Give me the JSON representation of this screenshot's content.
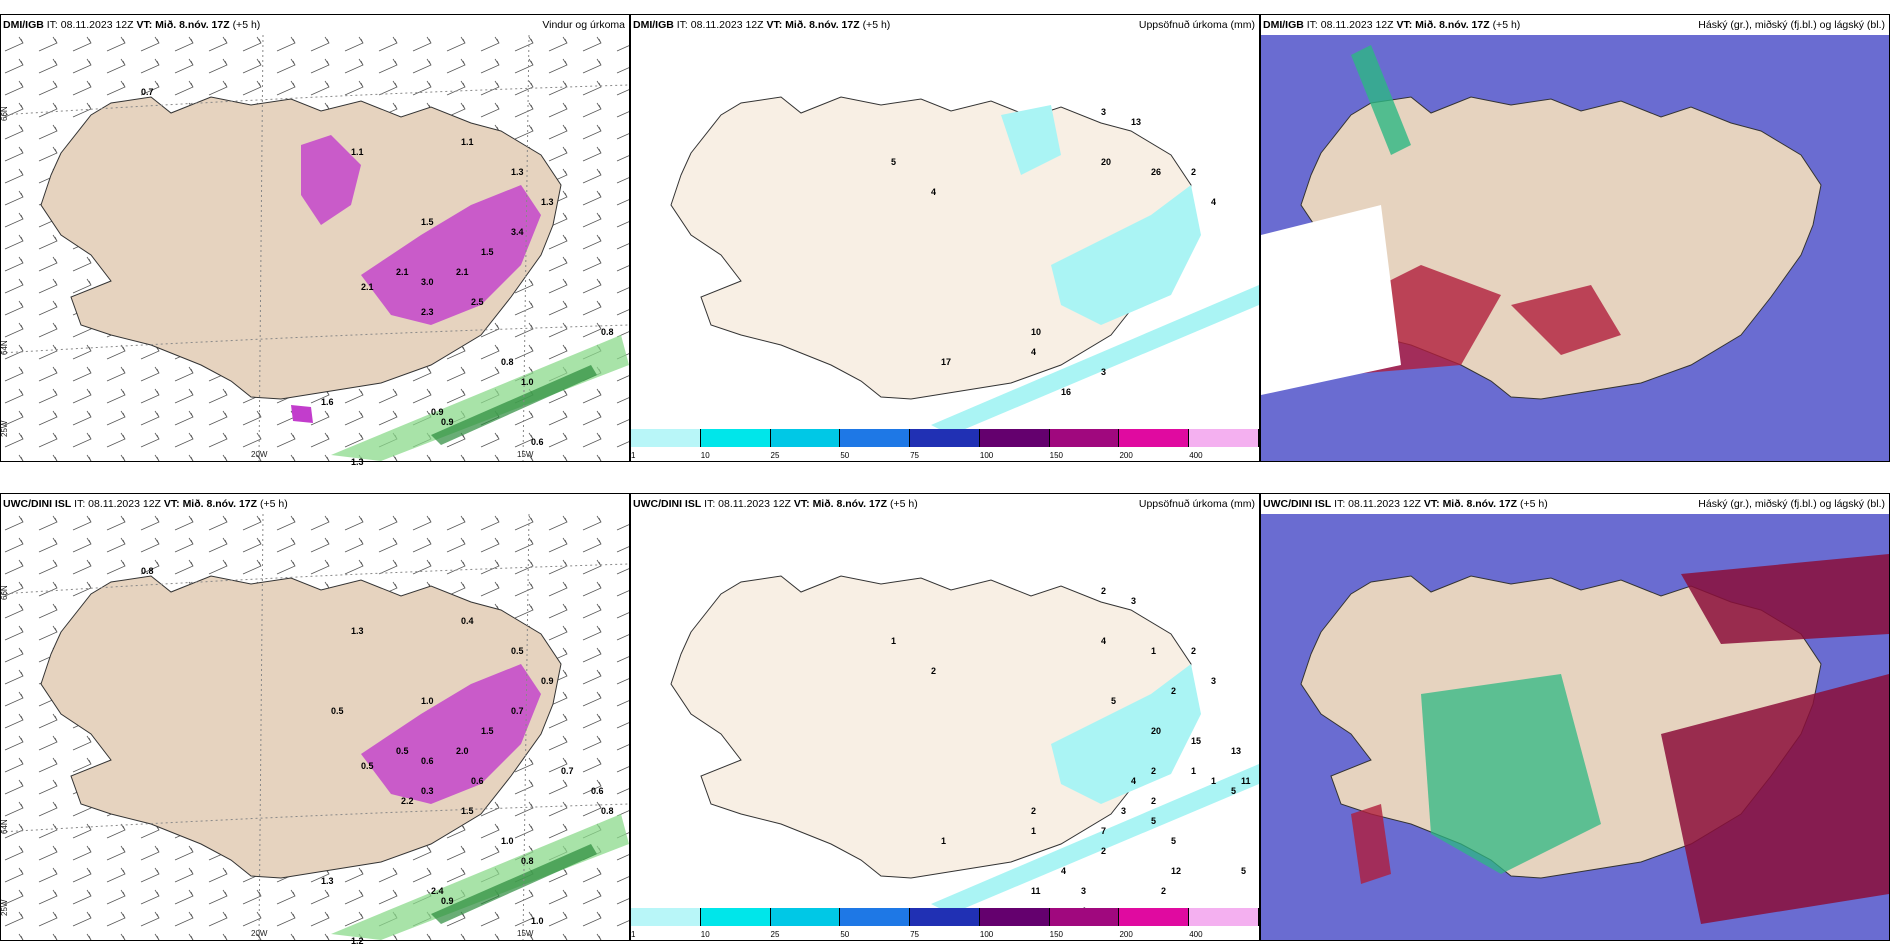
{
  "panels": [
    {
      "model": "DMI/IGB",
      "it": "IT: 08.11.2023 12Z",
      "vt_label": "VT:",
      "vt": "Mið. 8.nóv. 17Z",
      "lead": "(+5 h)",
      "right_title": "Vindur og úrkoma",
      "lat_labels": [
        "66N",
        "64N",
        "25W"
      ],
      "lon_labels": [
        "20W",
        "15W"
      ],
      "values": [
        "0.7",
        "1.1",
        "1.1",
        "1.3",
        "1.5",
        "2.1",
        "3.0",
        "2.1",
        "1.5",
        "2.3",
        "2.5",
        "1.6",
        "0.9",
        "1.3",
        "0.8",
        "0.8",
        "1.0",
        "0.9",
        "0.6",
        "2.1",
        "3.4",
        "1.3"
      ]
    },
    {
      "model": "DMI/IGB",
      "it": "IT: 08.11.2023 12Z",
      "vt_label": "VT:",
      "vt": "Mið. 8.nóv. 17Z",
      "lead": "(+5 h)",
      "right_title": "Uppsöfnuð úrkoma (mm)",
      "values": [
        "5",
        "4",
        "3",
        "13",
        "20",
        "17",
        "10",
        "26",
        "2",
        "4",
        "4",
        "3",
        "16"
      ]
    },
    {
      "model": "DMI/IGB",
      "it": "IT: 08.11.2023 12Z",
      "vt_label": "VT:",
      "vt": "Mið. 8.nóv. 17Z",
      "lead": "(+5 h)",
      "right_title": "Háský (gr.), miðský (fj.bl.) og lágský (bl.)"
    },
    {
      "model": "UWC/DINI ISL",
      "it": "IT: 08.11.2023 12Z",
      "vt_label": "VT:",
      "vt": "Mið. 8.nóv. 17Z",
      "lead": "(+5 h)",
      "right_title": "",
      "lat_labels": [
        "66N",
        "64N",
        "25W"
      ],
      "lon_labels": [
        "20W",
        "15W"
      ],
      "values": [
        "0.8",
        "1.3",
        "0.4",
        "0.5",
        "1.0",
        "0.5",
        "0.6",
        "2.0",
        "1.5",
        "0.3",
        "0.6",
        "1.3",
        "2.4",
        "1.2",
        "1.0",
        "0.8",
        "0.8",
        "0.9",
        "1.0",
        "0.5",
        "0.7",
        "0.9",
        "0.7",
        "0.6",
        "0.5",
        "1.5",
        "2.2"
      ]
    },
    {
      "model": "UWC/DINI ISL",
      "it": "IT: 08.11.2023 12Z",
      "vt_label": "VT:",
      "vt": "Mið. 8.nóv. 17Z",
      "lead": "(+5 h)",
      "right_title": "Uppsöfnuð úrkoma (mm)",
      "values": [
        "1",
        "2",
        "2",
        "3",
        "4",
        "1",
        "2",
        "1",
        "2",
        "3",
        "1",
        "2",
        "4",
        "12",
        "3",
        "5",
        "20",
        "15",
        "1",
        "2",
        "4",
        "2",
        "3",
        "7",
        "5",
        "13",
        "11",
        "1",
        "5",
        "2",
        "5",
        "3",
        "5",
        "4",
        "2",
        "11",
        "5"
      ]
    },
    {
      "model": "UWC/DINI ISL",
      "it": "IT: 08.11.2023 12Z",
      "vt_label": "VT:",
      "vt": "Mið. 8.nóv. 17Z",
      "lead": "(+5 h)",
      "right_title": "Háský (gr.), miðský (fj.bl.) og lágský (bl.)"
    }
  ],
  "colorbar": {
    "ticks": [
      "1",
      "10",
      "25",
      "50",
      "75",
      "100",
      "150",
      "200",
      "400"
    ],
    "colors": [
      "#b8f6f8",
      "#00e6ea",
      "#00c8e6",
      "#1e78e6",
      "#2030b4",
      "#64006e",
      "#a0087e",
      "#e00aa0",
      "#f4b0f0"
    ]
  },
  "colors": {
    "land": "#f8efe4",
    "land_dim": "#e6d3bf",
    "precip_magenta": "#c23dcc",
    "precip_green": "#8bd98b",
    "cyan": "#aaf4f4",
    "cloud_high": "#2db883",
    "cloud_mid": "#5a5ccc",
    "cloud_low": "#b01e3c"
  }
}
